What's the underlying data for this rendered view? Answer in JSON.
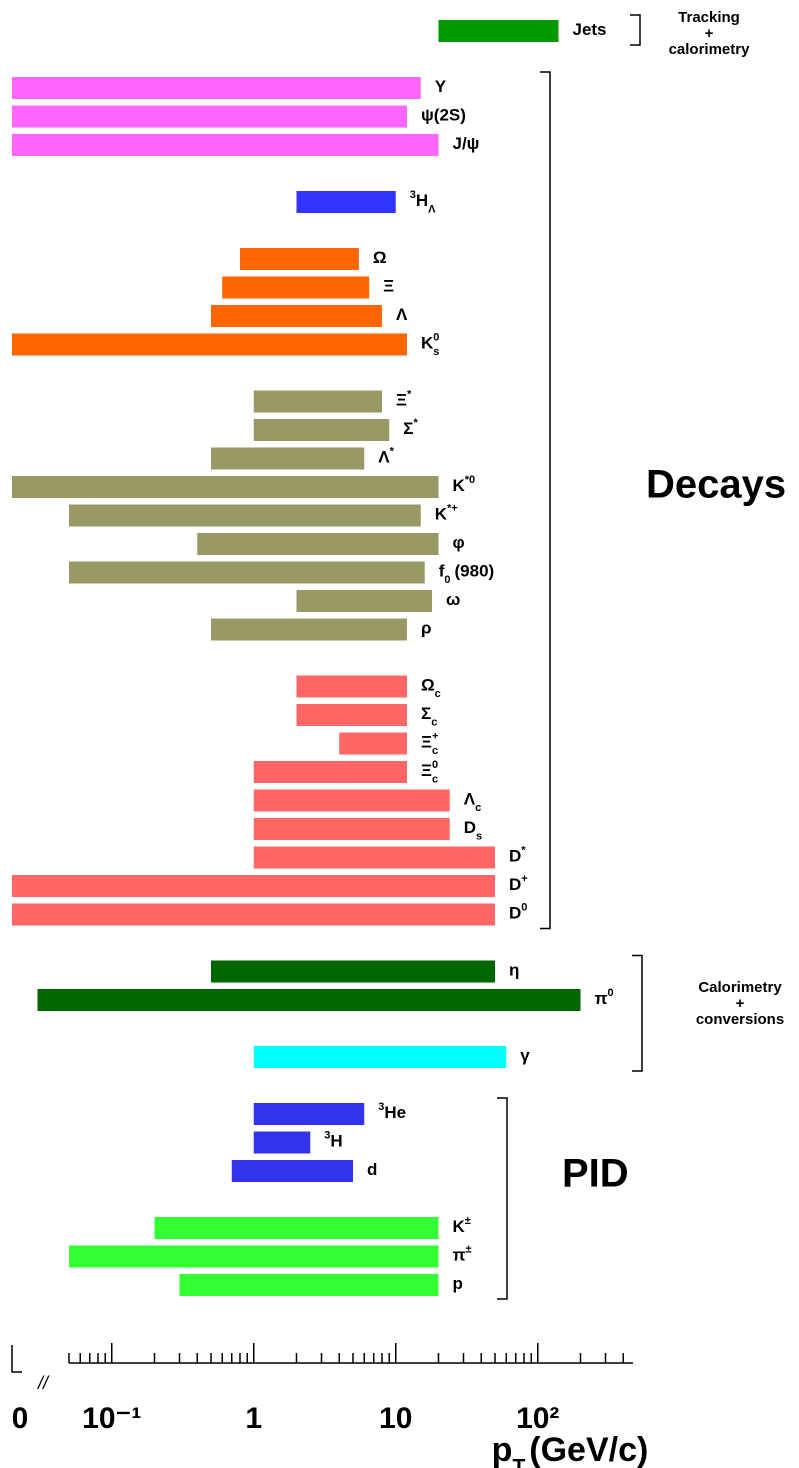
{
  "chart_data": {
    "type": "bar",
    "orientation": "horizontal",
    "xscale": "log",
    "xlim": [
      0.05,
      500
    ],
    "xticks": [
      0,
      {
        "value": 0.1,
        "label": "10⁻¹"
      },
      1,
      10,
      {
        "value": 100,
        "label": "10²"
      }
    ],
    "xminorticks": [
      0.05,
      0.06,
      0.07,
      0.08,
      0.09,
      0.2,
      0.3,
      0.4,
      0.5,
      0.6,
      0.7,
      0.8,
      0.9,
      2,
      3,
      4,
      5,
      6,
      7,
      8,
      9,
      20,
      30,
      40,
      50,
      60,
      70,
      80,
      90,
      200,
      300,
      400
    ],
    "xlabel": {
      "text": "p",
      "sub": "T",
      "post": "(GeV/c)"
    },
    "groups": [
      {
        "name": [
          "Tracking",
          "+",
          "calorimetry"
        ],
        "bars": [
          {
            "label": {
              "text": "Jets"
            },
            "range": [
              20,
              140
            ],
            "color": "#009900"
          }
        ]
      },
      {
        "name": [
          "Decays"
        ],
        "bars": [
          {
            "label": {
              "text": "Υ"
            },
            "range": [
              0,
              15
            ],
            "color": "#ff66ff"
          },
          {
            "label": {
              "text": "ψ(2S)"
            },
            "range": [
              0,
              12
            ],
            "color": "#ff66ff"
          },
          {
            "label": {
              "text": "J/ψ"
            },
            "range": [
              0,
              20
            ],
            "color": "#ff66ff"
          },
          {
            "label": {
              "pre": "3",
              "text": "H",
              "sub": "Λ"
            },
            "range": [
              2,
              10
            ],
            "color": "#3333ff"
          },
          {
            "label": {
              "text": "Ω"
            },
            "range": [
              0.8,
              5.5
            ],
            "color": "#ff6600"
          },
          {
            "label": {
              "text": "Ξ"
            },
            "range": [
              0.6,
              6.5
            ],
            "color": "#ff6600"
          },
          {
            "label": {
              "text": "Λ"
            },
            "range": [
              0.5,
              8
            ],
            "color": "#ff6600"
          },
          {
            "label": {
              "text": "K",
              "sup": "0",
              "sub": "s"
            },
            "range": [
              0,
              12
            ],
            "color": "#ff6600"
          },
          {
            "label": {
              "text": "Ξ",
              "sup": "*"
            },
            "range": [
              1,
              8
            ],
            "color": "#999966"
          },
          {
            "label": {
              "text": "Σ",
              "sup": "*"
            },
            "range": [
              1,
              9
            ],
            "color": "#999966"
          },
          {
            "label": {
              "text": "Λ",
              "sup": "*"
            },
            "range": [
              0.5,
              6
            ],
            "color": "#999966"
          },
          {
            "label": {
              "text": "K",
              "sup": "*0"
            },
            "range": [
              0,
              20
            ],
            "color": "#999966"
          },
          {
            "label": {
              "text": "K",
              "sup": "*+"
            },
            "range": [
              0.05,
              15
            ],
            "color": "#999966"
          },
          {
            "label": {
              "text": "φ"
            },
            "range": [
              0.4,
              20
            ],
            "color": "#999966"
          },
          {
            "label": {
              "text": "f",
              "sub": "0",
              "post": "(980)"
            },
            "range": [
              0.05,
              16
            ],
            "color": "#999966"
          },
          {
            "label": {
              "text": "ω"
            },
            "range": [
              2,
              18
            ],
            "color": "#999966"
          },
          {
            "label": {
              "text": "ρ"
            },
            "range": [
              0.5,
              12
            ],
            "color": "#999966"
          },
          {
            "label": {
              "text": "Ω",
              "sub": "c"
            },
            "range": [
              2,
              12
            ],
            "color": "#ff6666"
          },
          {
            "label": {
              "text": "Σ",
              "sub": "c"
            },
            "range": [
              2,
              12
            ],
            "color": "#ff6666"
          },
          {
            "label": {
              "text": "Ξ",
              "sup": "+",
              "sub": "c"
            },
            "range": [
              4,
              12
            ],
            "color": "#ff6666"
          },
          {
            "label": {
              "text": "Ξ",
              "sup": "0",
              "sub": "c"
            },
            "range": [
              1,
              12
            ],
            "color": "#ff6666"
          },
          {
            "label": {
              "text": "Λ",
              "sub": "c"
            },
            "range": [
              1,
              24
            ],
            "color": "#ff6666"
          },
          {
            "label": {
              "text": "D",
              "sub": "s"
            },
            "range": [
              1,
              24
            ],
            "color": "#ff6666"
          },
          {
            "label": {
              "text": "D",
              "sup": "*"
            },
            "range": [
              1,
              50
            ],
            "color": "#ff6666"
          },
          {
            "label": {
              "text": "D",
              "sup": "+"
            },
            "range": [
              0,
              50
            ],
            "color": "#ff6666"
          },
          {
            "label": {
              "text": "D",
              "sup": "0"
            },
            "range": [
              0,
              50
            ],
            "color": "#ff6666"
          }
        ]
      },
      {
        "name": [
          "Calorimetry",
          "+",
          "conversions"
        ],
        "bars": [
          {
            "label": {
              "text": "η"
            },
            "range": [
              0.5,
              50
            ],
            "color": "#006600"
          },
          {
            "label": {
              "text": "π",
              "sup": "0"
            },
            "range": [
              0.03,
              200
            ],
            "color": "#006600"
          },
          {
            "label": {
              "text": "γ"
            },
            "range": [
              1,
              60
            ],
            "color": "#00ffff"
          }
        ]
      },
      {
        "name": [
          "PID"
        ],
        "bars": [
          {
            "label": {
              "pre": "3",
              "text": "He"
            },
            "range": [
              1,
              6
            ],
            "color": "#3333ee"
          },
          {
            "label": {
              "pre": "3",
              "text": "H"
            },
            "range": [
              1,
              2.5
            ],
            "color": "#3333ee"
          },
          {
            "label": {
              "text": "d"
            },
            "range": [
              0.7,
              5
            ],
            "color": "#3333ee"
          },
          {
            "label": {
              "text": "K",
              "sup": "±"
            },
            "range": [
              0.2,
              20
            ],
            "color": "#33ff33"
          },
          {
            "label": {
              "text": "π",
              "sup": "±"
            },
            "range": [
              0.05,
              20
            ],
            "color": "#33ff33"
          },
          {
            "label": {
              "text": "p"
            },
            "range": [
              0.3,
              20
            ],
            "color": "#33ff33"
          }
        ]
      }
    ]
  }
}
